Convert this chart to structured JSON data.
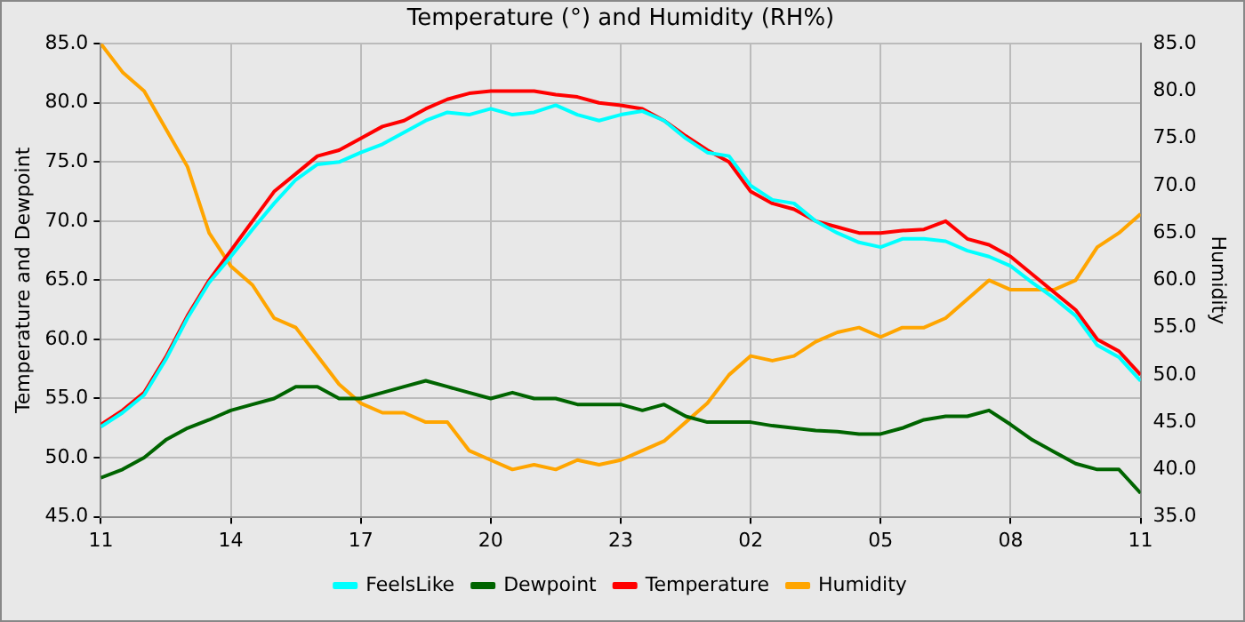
{
  "chart_data": {
    "type": "line",
    "title": "Temperature (°) and Humidity (RH%)",
    "ylabel": "Temperature and Dewpoint",
    "y2label": "Humidity",
    "x": [
      "--01-01T11:00",
      "--01-01T11:30",
      "--01-01T12:00",
      "--01-01T12:30",
      "--01-01T13:00",
      "--01-01T13:30",
      "--01-01T14:00",
      "--01-01T14:30",
      "--01-01T15:00",
      "--01-01T15:30",
      "--01-01T16:00",
      "--01-01T16:30",
      "--01-01T17:00",
      "--01-01T17:30",
      "--01-01T18:00",
      "--01-01T18:30",
      "--01-01T19:00",
      "--01-01T19:30",
      "--01-01T20:00",
      "--01-01T20:30",
      "--01-01T21:00",
      "--01-01T21:30",
      "--01-01T22:00",
      "--01-01T22:30",
      "--01-01T23:00",
      "--01-01T23:30",
      "--01-02T00:00",
      "--01-02T00:30",
      "--01-02T01:00",
      "--01-02T01:30",
      "--01-02T02:00",
      "--01-02T02:30",
      "--01-02T03:00",
      "--01-02T03:30",
      "--01-02T04:00",
      "--01-02T04:30",
      "--01-02T05:00",
      "--01-02T05:30",
      "--01-02T06:00",
      "--01-02T06:30",
      "--01-02T07:00",
      "--01-02T07:30",
      "--01-02T08:00",
      "--01-02T08:30",
      "--01-02T09:00",
      "--01-02T09:30",
      "--01-02T10:00",
      "--01-02T10:30",
      "--01-02T11:00"
    ],
    "xlim": [
      "--01-01T11:00",
      "--01-02T11:00"
    ],
    "xticks": [
      {
        "value": "--01-01T11:00",
        "label": "11"
      },
      {
        "value": "--01-01T14:00",
        "label": "14"
      },
      {
        "value": "--01-01T17:00",
        "label": "17"
      },
      {
        "value": "--01-01T20:00",
        "label": "20"
      },
      {
        "value": "--01-01T23:00",
        "label": "23"
      },
      {
        "value": "--01-02T02:00",
        "label": "02"
      },
      {
        "value": "--01-02T05:00",
        "label": "05"
      },
      {
        "value": "--01-02T08:00",
        "label": "08"
      },
      {
        "value": "--01-02T11:00",
        "label": "11"
      }
    ],
    "ylim": [
      45,
      85
    ],
    "yticks": [
      {
        "value": 45,
        "label": "45.0"
      },
      {
        "value": 50,
        "label": "50.0"
      },
      {
        "value": 55,
        "label": "55.0"
      },
      {
        "value": 60,
        "label": "60.0"
      },
      {
        "value": 65,
        "label": "65.0"
      },
      {
        "value": 70,
        "label": "70.0"
      },
      {
        "value": 75,
        "label": "75.0"
      },
      {
        "value": 80,
        "label": "80.0"
      },
      {
        "value": 85,
        "label": "85.0"
      }
    ],
    "y2lim": [
      35,
      85
    ],
    "y2ticks": [
      {
        "value": 35,
        "label": "35.0"
      },
      {
        "value": 40,
        "label": "40.0"
      },
      {
        "value": 45,
        "label": "45.0"
      },
      {
        "value": 50,
        "label": "50.0"
      },
      {
        "value": 55,
        "label": "55.0"
      },
      {
        "value": 60,
        "label": "60.0"
      },
      {
        "value": 65,
        "label": "65.0"
      },
      {
        "value": 70,
        "label": "70.0"
      },
      {
        "value": 75,
        "label": "75.0"
      },
      {
        "value": 80,
        "label": "80.0"
      },
      {
        "value": 85,
        "label": "85.0"
      }
    ],
    "grid": true,
    "legend": "bottom",
    "marker": "none",
    "line_style": "solid",
    "series": [
      {
        "name": "FeelsLike",
        "color": "#00ffff",
        "values": [
          52.6,
          53.8,
          55.3,
          58.3,
          61.8,
          64.8,
          67,
          69.3,
          71.5,
          73.5,
          74.8,
          75,
          75.8,
          76.5,
          77.5,
          78.5,
          79.2,
          79,
          79.5,
          79,
          79.2,
          79.8,
          79,
          78.5,
          79,
          79.3,
          78.5,
          77,
          75.8,
          75.5,
          73,
          71.8,
          71.5,
          70,
          69,
          68.2,
          67.8,
          68.5,
          68.5,
          68.3,
          67.5,
          67,
          66.2,
          64.8,
          63.5,
          62,
          59.5,
          58.5,
          56.5
        ]
      },
      {
        "name": "Dewpoint",
        "color": "#006400",
        "values": [
          48.3,
          49,
          50,
          51.5,
          52.5,
          53.2,
          54,
          54.5,
          55,
          56,
          56,
          55,
          55,
          55.5,
          56,
          56.5,
          56,
          55.5,
          55,
          55.5,
          55,
          55,
          54.5,
          54.5,
          54.5,
          54,
          54.5,
          53.5,
          53,
          53,
          53,
          52.7,
          52.5,
          52.3,
          52.2,
          52,
          52,
          52.5,
          53.2,
          53.5,
          53.5,
          54,
          52.8,
          51.5,
          50.5,
          49.5,
          49,
          49,
          47
        ]
      },
      {
        "name": "Temperature",
        "color": "#ff0000",
        "values": [
          52.8,
          54,
          55.5,
          58.5,
          62,
          65,
          67.5,
          70,
          72.5,
          74,
          75.5,
          76,
          77,
          78,
          78.5,
          79.5,
          80.3,
          80.8,
          81,
          81,
          81,
          80.7,
          80.5,
          80,
          79.8,
          79.5,
          78.5,
          77.2,
          76,
          75,
          72.5,
          71.5,
          71,
          70,
          69.5,
          69,
          69,
          69.2,
          69.3,
          70,
          68.5,
          68,
          67,
          65.5,
          64,
          62.5,
          60,
          59,
          57
        ]
      },
      {
        "name": "Humidity",
        "color": "#ffa500",
        "axis": "y2",
        "values": [
          85,
          82,
          80,
          76,
          72,
          65,
          61.5,
          59.5,
          56,
          55,
          52,
          49,
          47,
          46,
          46,
          45,
          45,
          42,
          41,
          40,
          40.5,
          40,
          41,
          40.5,
          41,
          42,
          43,
          45,
          47,
          50,
          52,
          51.5,
          52,
          53.5,
          54.5,
          55,
          54,
          55,
          55,
          56,
          58,
          60,
          59,
          59,
          59,
          60,
          63.5,
          65,
          67
        ]
      }
    ]
  }
}
